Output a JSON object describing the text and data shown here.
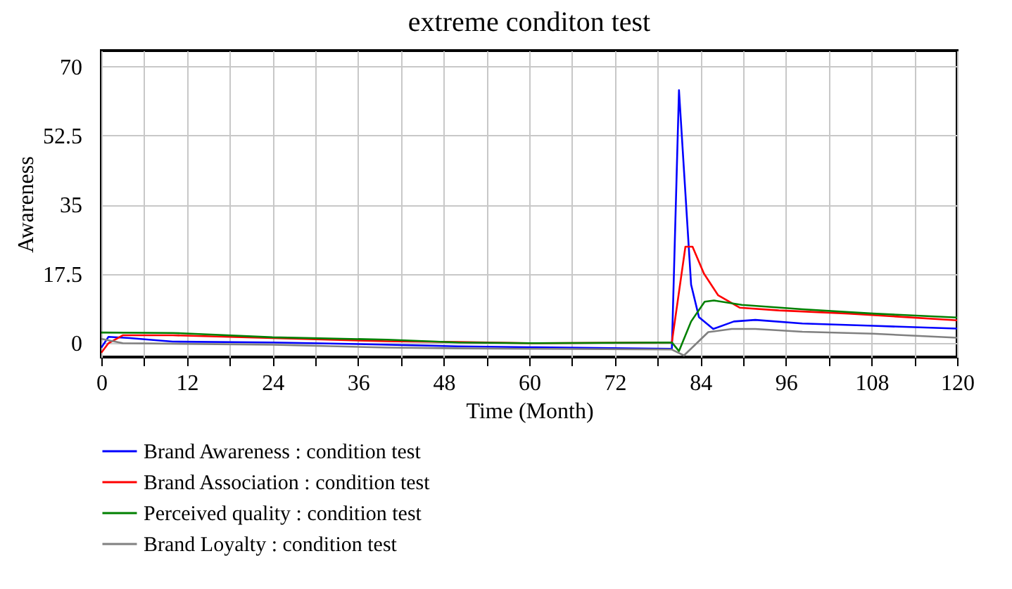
{
  "chart_data": {
    "type": "line",
    "title": "extreme conditon test",
    "xlabel": "Time (Month)",
    "ylabel": "Awareness",
    "xlim": [
      0,
      120
    ],
    "ylim": [
      -3.5,
      74
    ],
    "xticks": [
      0,
      {
        "value": 6,
        "label": null
      },
      12,
      {
        "value": 18,
        "label": null
      },
      24,
      {
        "value": 30,
        "label": null
      },
      36,
      {
        "value": 42,
        "label": null
      },
      48,
      {
        "value": 54,
        "label": null
      },
      60,
      {
        "value": 66,
        "label": null
      },
      72,
      {
        "value": 78,
        "label": null
      },
      84,
      {
        "value": 90,
        "label": null
      },
      96,
      {
        "value": 102,
        "label": null
      },
      108,
      {
        "value": 114,
        "label": null
      },
      120
    ],
    "yticks": [
      0,
      17.5,
      35,
      52.5,
      70
    ],
    "grid": true,
    "legend": "bottom",
    "marker": "none",
    "line_style": "solid",
    "series": [
      {
        "name": "Brand Awareness : condition test",
        "color": "#0000ff",
        "x": [
          0,
          1,
          4,
          10,
          24,
          36,
          50,
          60,
          80,
          81,
          82.7,
          83.8,
          85.8,
          88.7,
          91.7,
          98.3,
          108.2,
          120
        ],
        "values": [
          -1.1,
          1.6,
          1.3,
          0.4,
          0.2,
          -0.2,
          -0.8,
          -1.0,
          -1.4,
          64,
          14.8,
          6.6,
          3.6,
          5.5,
          5.9,
          5.0,
          4.4,
          3.7
        ]
      },
      {
        "name": "Brand Association : condition test",
        "color": "#ff0000",
        "x": [
          0,
          1,
          3,
          10,
          24,
          40,
          50,
          60,
          80,
          81.9,
          82.9,
          84.5,
          86.5,
          89.5,
          95,
          104.8,
          120
        ],
        "values": [
          -2.4,
          0,
          2.0,
          2.0,
          1.3,
          0.5,
          0.3,
          0,
          0.2,
          24.4,
          24.4,
          17.6,
          12.1,
          9.0,
          8.3,
          7.5,
          5.8
        ]
      },
      {
        "name": "Perceived quality : condition test",
        "color": "#008000",
        "x": [
          0,
          10,
          24,
          40,
          50,
          60,
          80,
          81,
          82.7,
          84.6,
          85.9,
          89.8,
          98.3,
          108.2,
          120
        ],
        "values": [
          2.7,
          2.6,
          1.5,
          0.9,
          0.2,
          0,
          0.2,
          -2,
          5.5,
          10.5,
          10.8,
          9.7,
          8.6,
          7.5,
          6.5
        ]
      },
      {
        "name": "Brand Loyalty : condition test",
        "color": "#808080",
        "x": [
          0,
          3,
          24,
          40,
          50,
          60,
          80,
          81.7,
          85.1,
          88.4,
          91.7,
          98.3,
          108.2,
          120
        ],
        "values": [
          1.1,
          0,
          -0.4,
          -1.1,
          -1.3,
          -1.4,
          -1.6,
          -3.1,
          2.8,
          3.6,
          3.6,
          2.9,
          2.4,
          1.4
        ]
      }
    ]
  }
}
